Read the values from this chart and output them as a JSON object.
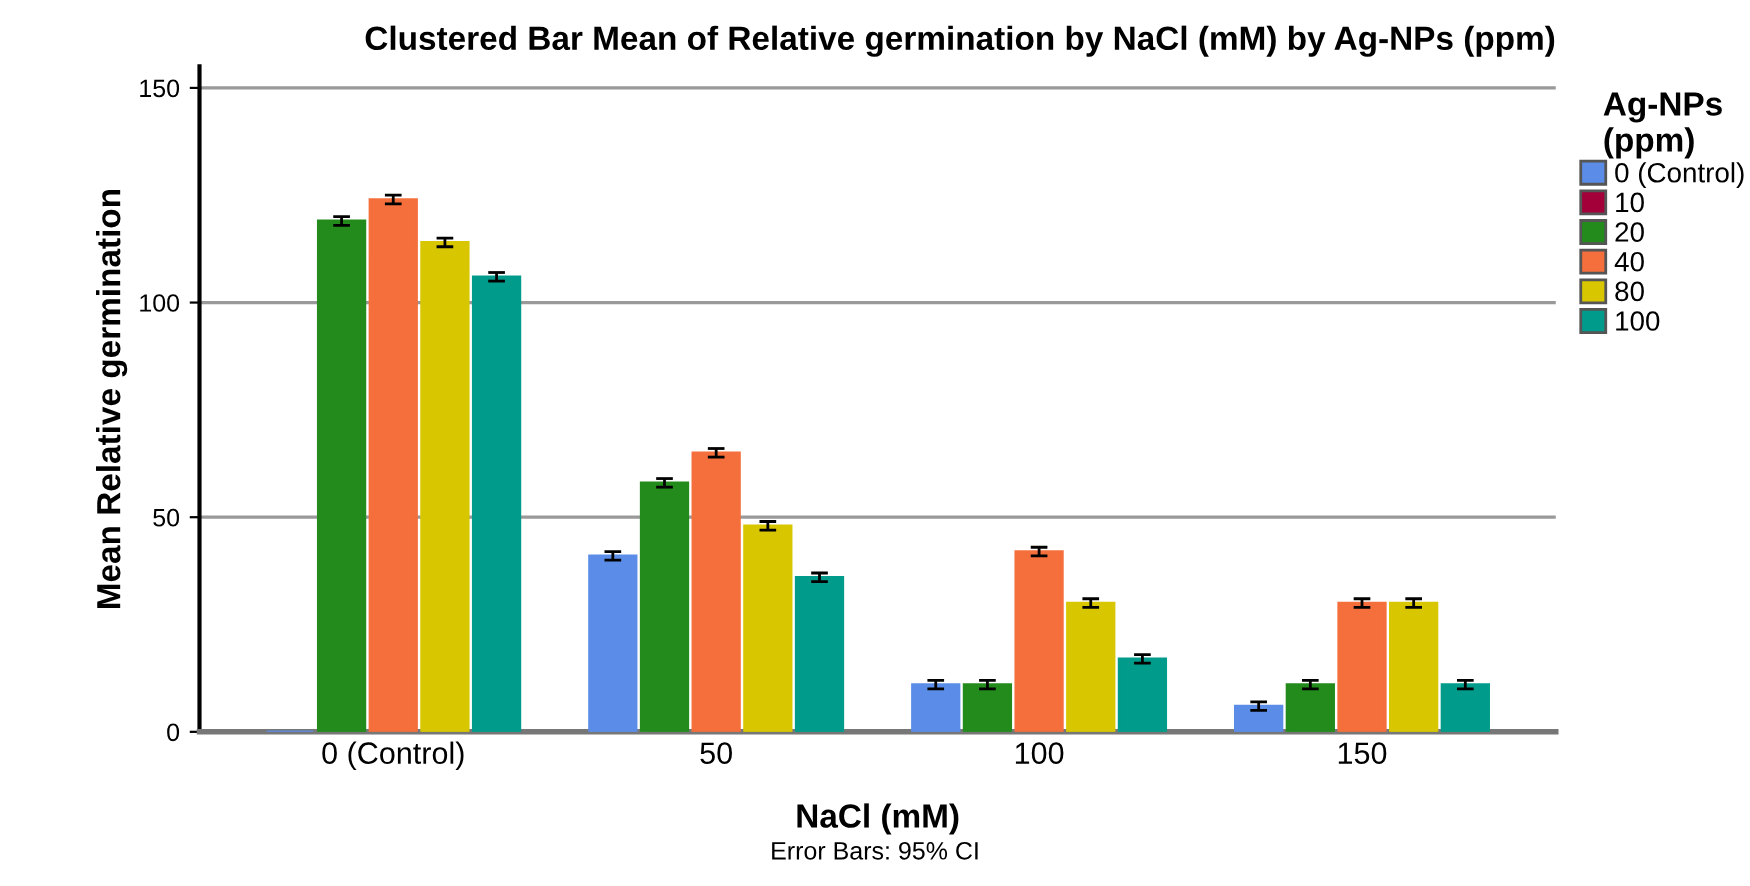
{
  "chart_data": {
    "type": "bar",
    "title": "Clustered Bar Mean of Relative germination by NaCl (mM) by Ag-NPs (ppm)",
    "xlabel": "NaCl (mM)",
    "ylabel": "Mean Relative germination",
    "legend_title": "Ag-NPs\n(ppm)",
    "annotations": [
      "Error Bars: 95% CI"
    ],
    "categories": [
      "0 (Control)",
      "50",
      "100",
      "150"
    ],
    "series": [
      {
        "name": "0 (Control)",
        "color": "#5b8de8",
        "values": [
          0,
          41,
          11,
          6
        ],
        "errors": [
          null,
          1,
          1,
          1
        ]
      },
      {
        "name": "10",
        "color": "#a3003a",
        "values": [
          null,
          null,
          null,
          null
        ]
      },
      {
        "name": "20",
        "color": "#238b1c",
        "values": [
          119,
          58,
          11,
          11
        ],
        "errors": [
          1,
          1,
          1,
          1
        ]
      },
      {
        "name": "40",
        "color": "#f46f3c",
        "values": [
          124,
          65,
          42,
          30
        ],
        "errors": [
          1,
          1,
          1,
          1
        ]
      },
      {
        "name": "80",
        "color": "#d8c700",
        "values": [
          114,
          48,
          30,
          30
        ],
        "errors": [
          1,
          1,
          1,
          1
        ]
      },
      {
        "name": "100",
        "color": "#009b8a",
        "values": [
          106,
          36,
          17,
          11
        ],
        "errors": [
          1,
          1,
          1,
          1
        ]
      }
    ],
    "ylim": [
      0,
      155
    ],
    "yticks": [
      0,
      50,
      100,
      150
    ],
    "grid": "y",
    "legend": "top right"
  }
}
